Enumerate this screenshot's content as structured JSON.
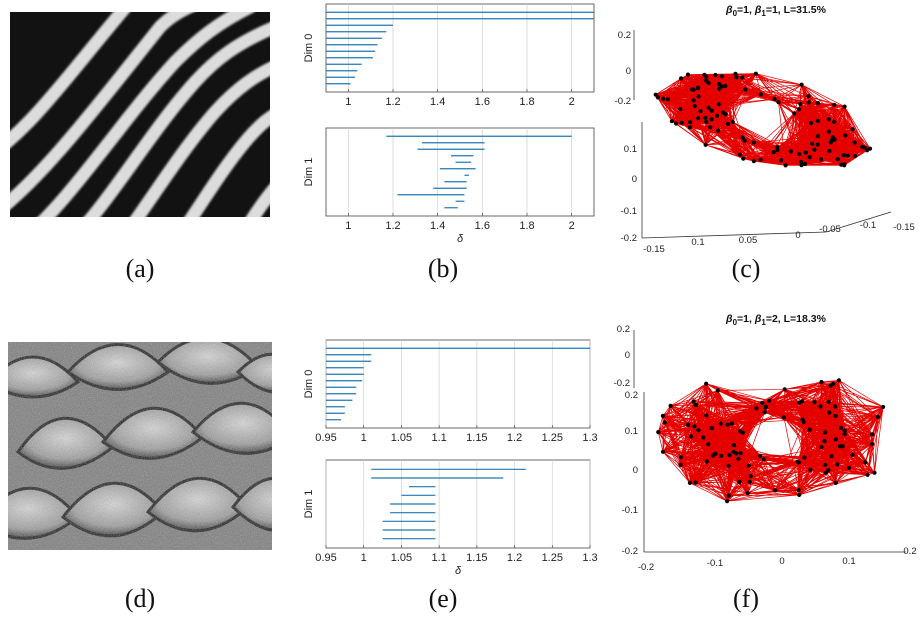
{
  "captions": {
    "a": "(a)",
    "b": "(b)",
    "c": "(c)",
    "d": "(d)",
    "e": "(e)",
    "f": "(f)"
  },
  "barcode_b": {
    "dim0_label": "Dim 0",
    "dim1_label": "Dim 1",
    "xlabel": "δ",
    "ticks": [
      "1",
      "1.2",
      "1.4",
      "1.6",
      "1.8",
      "2"
    ],
    "xlim": [
      0.9,
      2.1
    ],
    "dim0_bars": [
      [
        0.9,
        2.1
      ],
      [
        0.9,
        2.1
      ],
      [
        0.9,
        1.2
      ],
      [
        0.9,
        1.17
      ],
      [
        0.9,
        1.15
      ],
      [
        0.9,
        1.13
      ],
      [
        0.9,
        1.12
      ],
      [
        0.9,
        1.11
      ],
      [
        0.9,
        1.06
      ],
      [
        0.9,
        1.04
      ],
      [
        0.9,
        1.03
      ],
      [
        0.9,
        1.01
      ]
    ],
    "dim1_bars": [
      [
        1.17,
        2.0
      ],
      [
        1.33,
        1.61
      ],
      [
        1.31,
        1.61
      ],
      [
        1.46,
        1.56
      ],
      [
        1.48,
        1.55
      ],
      [
        1.41,
        1.57
      ],
      [
        1.52,
        1.54
      ],
      [
        1.43,
        1.53
      ],
      [
        1.38,
        1.53
      ],
      [
        1.22,
        1.52
      ],
      [
        1.48,
        1.52
      ],
      [
        1.43,
        1.49
      ]
    ]
  },
  "barcode_e": {
    "dim0_label": "Dim 0",
    "dim1_label": "Dim 1",
    "xlabel": "δ",
    "ticks": [
      "0.95",
      "1",
      "1.05",
      "1.1",
      "1.15",
      "1.2",
      "1.25",
      "1.3"
    ],
    "xlim": [
      0.95,
      1.3
    ],
    "dim0_bars": [
      [
        0.95,
        1.3
      ],
      [
        0.95,
        1.01
      ],
      [
        0.95,
        1.01
      ],
      [
        0.95,
        1.0
      ],
      [
        0.95,
        1.0
      ],
      [
        0.95,
        0.998
      ],
      [
        0.95,
        0.99
      ],
      [
        0.95,
        0.99
      ],
      [
        0.95,
        0.985
      ],
      [
        0.95,
        0.975
      ],
      [
        0.95,
        0.975
      ],
      [
        0.95,
        0.97
      ]
    ],
    "dim1_bars": [
      [
        1.01,
        1.215
      ],
      [
        1.01,
        1.185
      ],
      [
        1.06,
        1.095
      ],
      [
        1.05,
        1.095
      ],
      [
        1.035,
        1.095
      ],
      [
        1.035,
        1.095
      ],
      [
        1.025,
        1.095
      ],
      [
        1.025,
        1.095
      ],
      [
        1.025,
        1.095
      ]
    ]
  },
  "plot_c": {
    "title_prefix_0": "β",
    "title_sub_0": "0",
    "title_mid": "=1, ",
    "title_prefix_1": "β",
    "title_sub_1": "1",
    "title_suffix": "=1, L=31.5%",
    "z_ticks": [
      "0.2",
      "0",
      "-0.2"
    ],
    "y_ticks": [
      "0.1",
      "0",
      "-0.1",
      "-0.2"
    ],
    "x_ticks": [
      "-0.15",
      "0.1",
      "0.05",
      "0",
      "-0.05",
      "-0.1",
      "-0.15"
    ]
  },
  "plot_f": {
    "title_prefix_0": "β",
    "title_sub_0": "0",
    "title_mid": "=1, ",
    "title_prefix_1": "β",
    "title_sub_1": "1",
    "title_suffix": "=2, L=18.3%",
    "z_ticks": [
      "0.2",
      "0",
      "-0.2"
    ],
    "y_ticks": [
      "0.2",
      "0.1",
      "0",
      "-0.1",
      "-0.2"
    ],
    "x_ticks": [
      "-0.2",
      "-0.1",
      "0",
      "0.1",
      "0.2"
    ]
  },
  "colors": {
    "bar": "#1f77b4",
    "edge": "#e50000",
    "node": "#000000",
    "grid": "#d0d0d0"
  }
}
